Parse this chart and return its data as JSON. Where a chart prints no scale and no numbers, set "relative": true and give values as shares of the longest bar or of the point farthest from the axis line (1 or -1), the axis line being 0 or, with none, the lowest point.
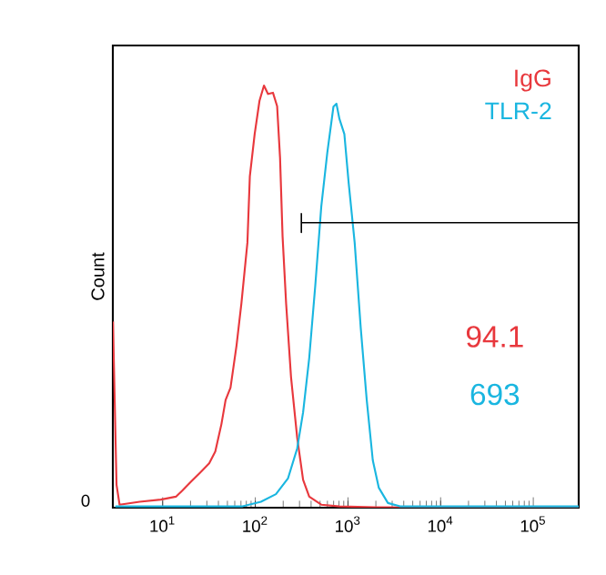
{
  "chart_data": {
    "type": "line",
    "relative": true,
    "log": "x",
    "ylabel": "Count",
    "legend": "top right",
    "marker": "none",
    "line_style": "solid",
    "grid": false,
    "xlim": [
      2.9,
      309000
    ],
    "xticks": [
      {
        "value": 10,
        "label": "10$^{1}$"
      },
      {
        "value": 100,
        "label": "10$^{2}$"
      },
      {
        "value": 1000,
        "label": "10$^{3}$"
      },
      {
        "value": 10000,
        "label": "10$^{4}$"
      },
      {
        "value": 100000,
        "label": "10$^{5}$"
      }
    ],
    "annotations": [
      "0",
      "94.1",
      "693"
    ],
    "series": [
      {
        "name": "IgG",
        "color": "#e8383d",
        "x": [
          2.91,
          3.18,
          3.43,
          5.65,
          9.55,
          13.9,
          16.2,
          20.3,
          25.4,
          31.8,
          37.0,
          43.1,
          47.8,
          54.0,
          62.7,
          70.8,
          78.6,
          82.2,
          87.3,
          98.4,
          111,
          124,
          137,
          155,
          172,
          185,
          197,
          215,
          243,
          283,
          328,
          382,
          515,
          809,
          2000,
          309000
        ],
        "values": [
          0.441,
          0.054,
          0.007,
          0.014,
          0.019,
          0.026,
          0.04,
          0.062,
          0.083,
          0.105,
          0.133,
          0.198,
          0.255,
          0.284,
          0.384,
          0.484,
          0.585,
          0.628,
          0.785,
          0.885,
          0.964,
          1.0,
          0.98,
          0.983,
          0.951,
          0.828,
          0.642,
          0.484,
          0.309,
          0.166,
          0.066,
          0.026,
          0.007,
          0.003,
          0.001,
          0
        ]
      },
      {
        "name": "TLR-2",
        "color": "#1ab6e0",
        "x": [
          3.09,
          72.9,
          115,
          167,
          225,
          283,
          328,
          382,
          444,
          515,
          599,
          697,
          751,
          809,
          914,
          1016,
          1181,
          1372,
          1594,
          1854,
          2153,
          2698,
          3648,
          309000
        ],
        "values": [
          0.003,
          0.003,
          0.014,
          0.032,
          0.069,
          0.14,
          0.226,
          0.355,
          0.527,
          0.713,
          0.842,
          0.95,
          0.957,
          0.921,
          0.885,
          0.771,
          0.628,
          0.427,
          0.255,
          0.112,
          0.047,
          0.011,
          0.003,
          0.003
        ]
      },
      {
        "color": "#000000",
        "x": [
          314,
          314,
          314,
          309000
        ],
        "values": [
          0.698,
          0.652,
          0.675,
          0.675
        ]
      }
    ]
  }
}
